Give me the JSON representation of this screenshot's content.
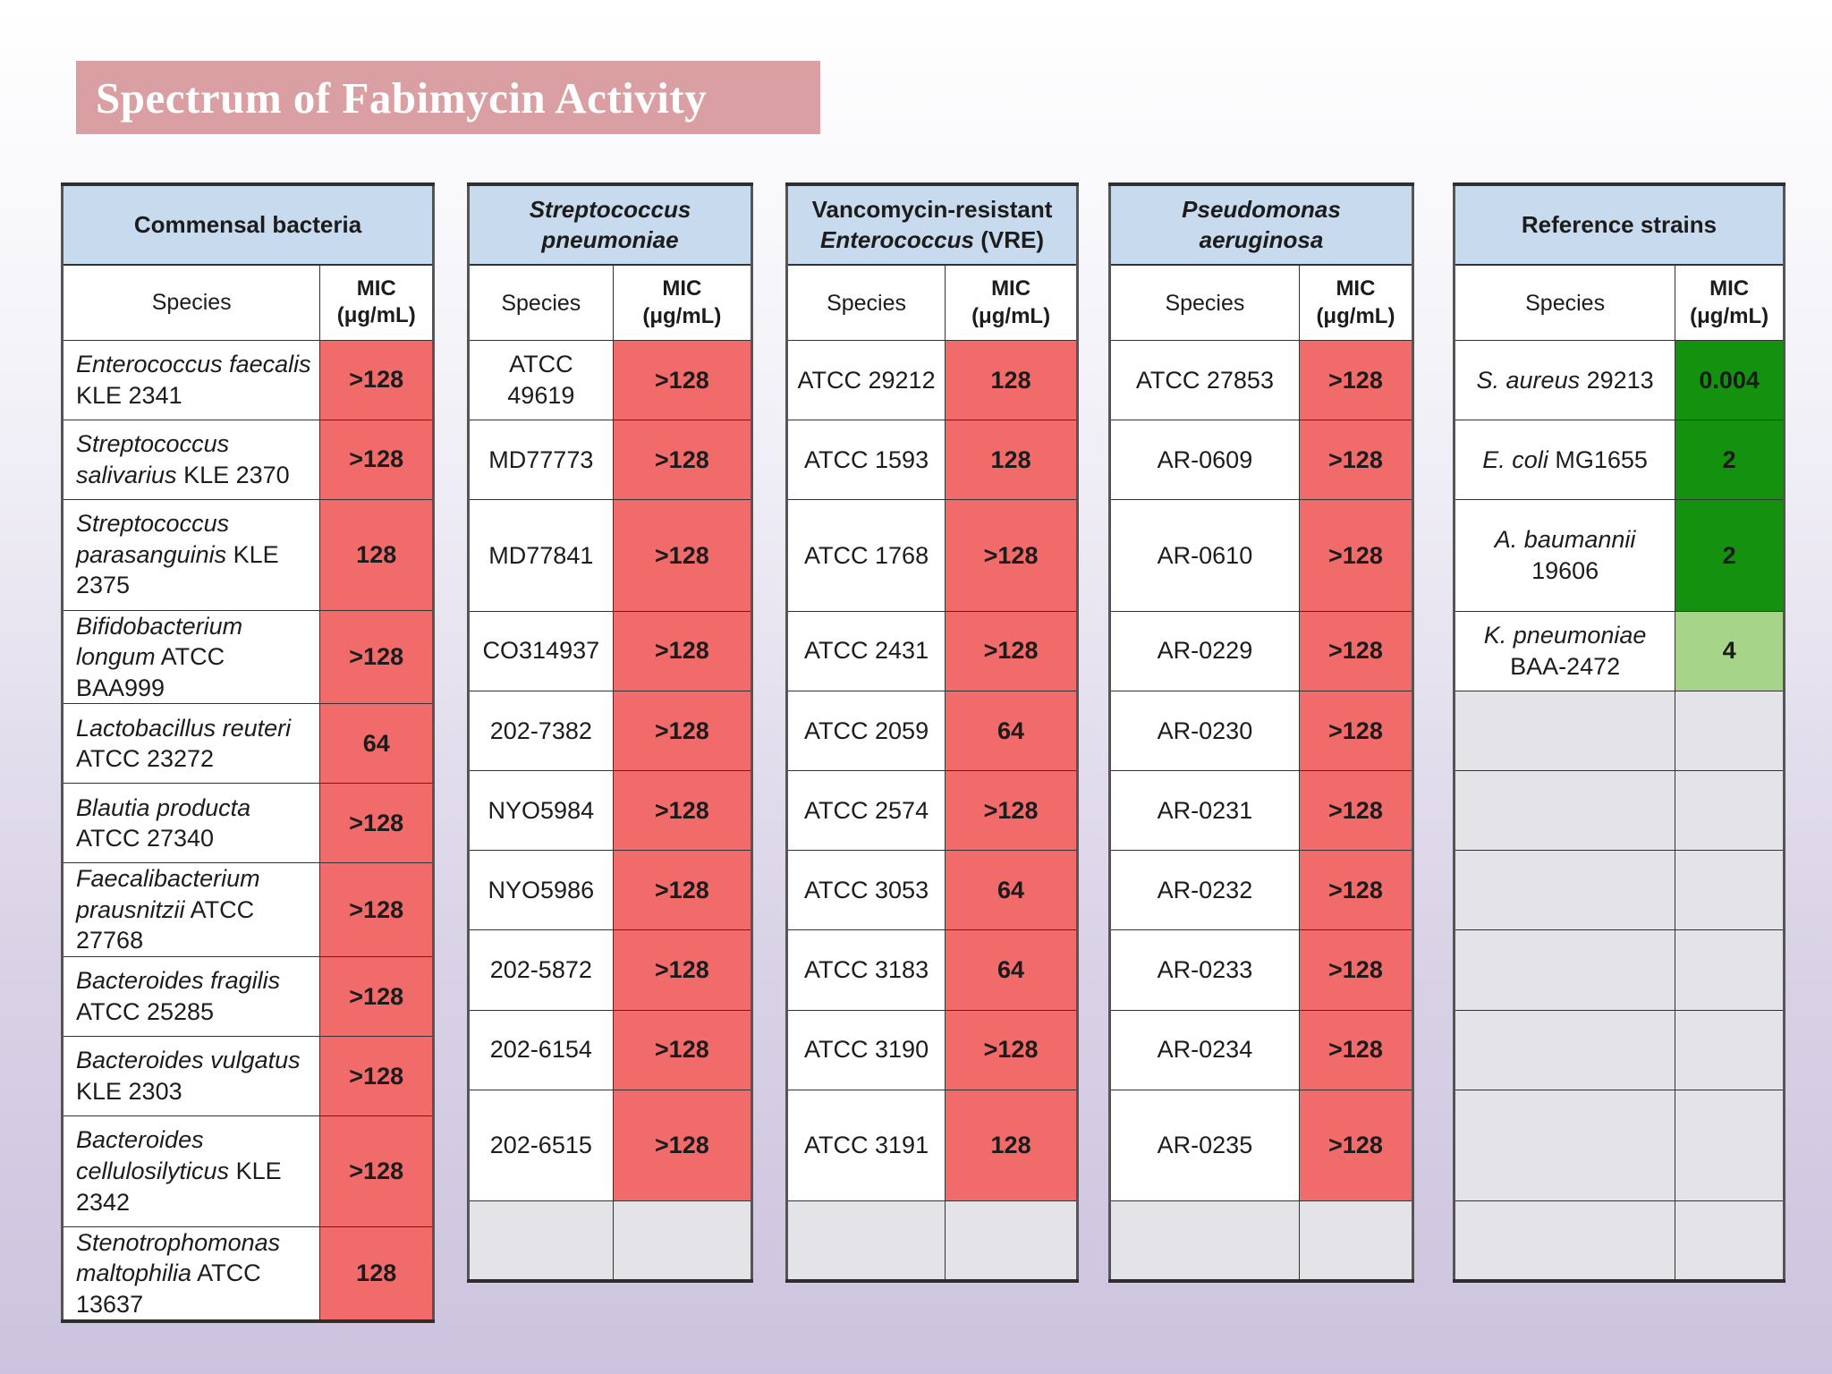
{
  "title": "Spectrum of Fabimycin Activity",
  "species_header": "Species",
  "mic_header_line1": "MIC",
  "mic_header_line2": "(μg/mL)",
  "colors": {
    "resistant": "#f26b6b",
    "active": "#14920f",
    "moderate": "#a6d488",
    "header": "#c8daed",
    "empty": "#e4e3e7"
  },
  "panels": {
    "commensal": {
      "title": "Commensal bacteria",
      "rows": [
        {
          "species_italic": "Enterococcus faecalis",
          "species_rest": "KLE 2341",
          "mic": ">128"
        },
        {
          "species_italic": "Streptococcus salivarius",
          "species_rest": "KLE 2370",
          "mic": ">128"
        },
        {
          "species_italic": "Streptococcus parasanguinis",
          "species_rest": "KLE 2375",
          "mic": "128"
        },
        {
          "species_italic": "Bifidobacterium longum",
          "species_rest": "ATCC BAA999",
          "mic": ">128"
        },
        {
          "species_italic": "Lactobacillus reuteri",
          "species_rest": "ATCC 23272",
          "mic": "64"
        },
        {
          "species_italic": "Blautia producta",
          "species_rest": "ATCC 27340",
          "mic": ">128"
        },
        {
          "species_italic": "Faecalibacterium prausnitzii",
          "species_rest": "ATCC 27768",
          "mic": ">128"
        },
        {
          "species_italic": "Bacteroides fragilis",
          "species_rest": "ATCC 25285",
          "mic": ">128"
        },
        {
          "species_italic": "Bacteroides vulgatus",
          "species_rest": "KLE 2303",
          "mic": ">128"
        },
        {
          "species_italic": "Bacteroides cellulosilyticus",
          "species_rest": "KLE 2342",
          "mic": ">128"
        },
        {
          "species_italic": "Stenotrophomonas maltophilia",
          "species_rest": "ATCC 13637",
          "mic": "128"
        }
      ]
    },
    "pneumoniae": {
      "title_line1": "Streptococcus",
      "title_line2": "pneumoniae",
      "rows": [
        {
          "species": "ATCC 49619",
          "mic": ">128"
        },
        {
          "species": "MD77773",
          "mic": ">128"
        },
        {
          "species": "MD77841",
          "mic": ">128"
        },
        {
          "species": "CO314937",
          "mic": ">128"
        },
        {
          "species": "202-7382",
          "mic": ">128"
        },
        {
          "species": "NYO5984",
          "mic": ">128"
        },
        {
          "species": "NYO5986",
          "mic": ">128"
        },
        {
          "species": "202-5872",
          "mic": ">128"
        },
        {
          "species": "202-6154",
          "mic": ">128"
        },
        {
          "species": "202-6515",
          "mic": ">128"
        }
      ]
    },
    "vre": {
      "title_line1": "Vancomycin-resistant",
      "title_line2_italic": "Enterococcus",
      "title_line2_rest": "(VRE)",
      "rows": [
        {
          "species": "ATCC 29212",
          "mic": "128"
        },
        {
          "species": "ATCC 1593",
          "mic": "128"
        },
        {
          "species": "ATCC 1768",
          "mic": ">128"
        },
        {
          "species": "ATCC 2431",
          "mic": ">128"
        },
        {
          "species": "ATCC 2059",
          "mic": "64"
        },
        {
          "species": "ATCC 2574",
          "mic": ">128"
        },
        {
          "species": "ATCC 3053",
          "mic": "64"
        },
        {
          "species": "ATCC 3183",
          "mic": "64"
        },
        {
          "species": "ATCC 3190",
          "mic": ">128"
        },
        {
          "species": "ATCC 3191",
          "mic": "128"
        }
      ]
    },
    "pseudomonas": {
      "title": "Pseudomonas aeruginosa",
      "rows": [
        {
          "species": "ATCC 27853",
          "mic": ">128"
        },
        {
          "species": "AR-0609",
          "mic": ">128"
        },
        {
          "species": "AR-0610",
          "mic": ">128"
        },
        {
          "species": "AR-0229",
          "mic": ">128"
        },
        {
          "species": "AR-0230",
          "mic": ">128"
        },
        {
          "species": "AR-0231",
          "mic": ">128"
        },
        {
          "species": "AR-0232",
          "mic": ">128"
        },
        {
          "species": "AR-0233",
          "mic": ">128"
        },
        {
          "species": "AR-0234",
          "mic": ">128"
        },
        {
          "species": "AR-0235",
          "mic": ">128"
        }
      ]
    },
    "reference": {
      "title": "Reference strains",
      "rows": [
        {
          "species_italic": "S. aureus",
          "species_rest": "29213",
          "mic": "0.004"
        },
        {
          "species_italic": "E. coli",
          "species_rest": "MG1655",
          "mic": "2"
        },
        {
          "species_italic": "A. baumannii",
          "species_rest": "19606",
          "mic": "2"
        },
        {
          "species_italic": "K. pneumoniae",
          "species_rest": "BAA-2472",
          "mic": "4"
        }
      ]
    }
  }
}
